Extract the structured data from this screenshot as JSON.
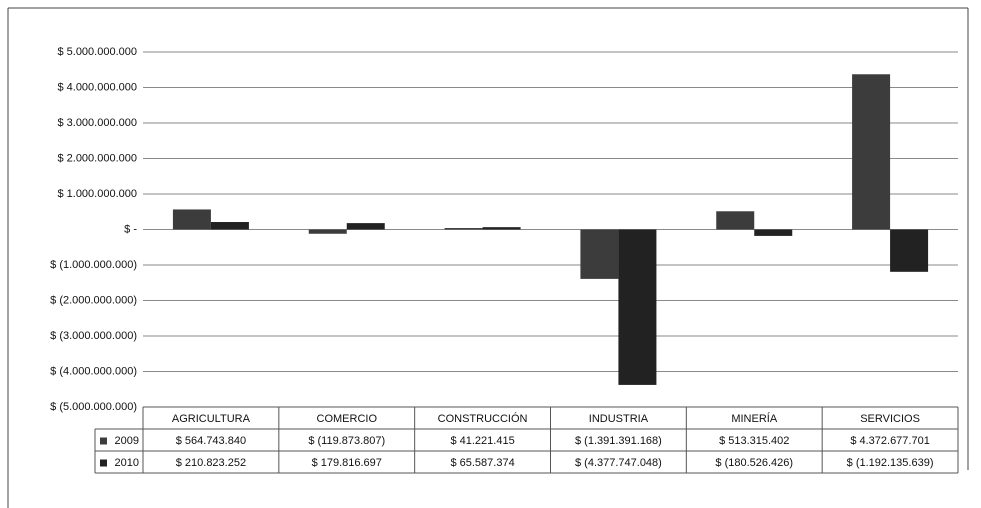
{
  "chart_data": {
    "type": "bar",
    "categories": [
      "AGRICULTURA",
      "COMERCIO",
      "CONSTRUCCIÓN",
      "INDUSTRIA",
      "MINERÍA",
      "SERVICIOS"
    ],
    "series": [
      {
        "name": "2009",
        "color": "#3c3c3c",
        "values": [
          564743840,
          -119873807,
          41221415,
          -1391391168,
          513315402,
          4372677701
        ],
        "value_labels": [
          "$ 564.743.840",
          "$ (119.873.807)",
          "$ 41.221.415",
          "$ (1.391.391.168)",
          "$ 513.315.402",
          "$ 4.372.677.701"
        ]
      },
      {
        "name": "2010",
        "color": "#222222",
        "values": [
          210823252,
          179816697,
          65587374,
          -4377747048,
          -180526426,
          -1192135639
        ],
        "value_labels": [
          "$ 210.823.252",
          "$ 179.816.697",
          "$ 65.587.374",
          "$ (4.377.747.048)",
          "$ (180.526.426)",
          "$ (1.192.135.639)"
        ]
      }
    ],
    "ylim": [
      -5000000000,
      5000000000
    ],
    "yticks": [
      {
        "value": 5000000000,
        "label": "$ 5.000.000.000"
      },
      {
        "value": 4000000000,
        "label": "$ 4.000.000.000"
      },
      {
        "value": 3000000000,
        "label": "$ 3.000.000.000"
      },
      {
        "value": 2000000000,
        "label": "$ 2.000.000.000"
      },
      {
        "value": 1000000000,
        "label": "$ 1.000.000.000"
      },
      {
        "value": 0,
        "label": "$ -"
      },
      {
        "value": -1000000000,
        "label": "$ (1.000.000.000)"
      },
      {
        "value": -2000000000,
        "label": "$ (2.000.000.000)"
      },
      {
        "value": -3000000000,
        "label": "$ (3.000.000.000)"
      },
      {
        "value": -4000000000,
        "label": "$ (4.000.000.000)"
      },
      {
        "value": -5000000000,
        "label": "$ (5.000.000.000)"
      }
    ],
    "grid": true
  }
}
